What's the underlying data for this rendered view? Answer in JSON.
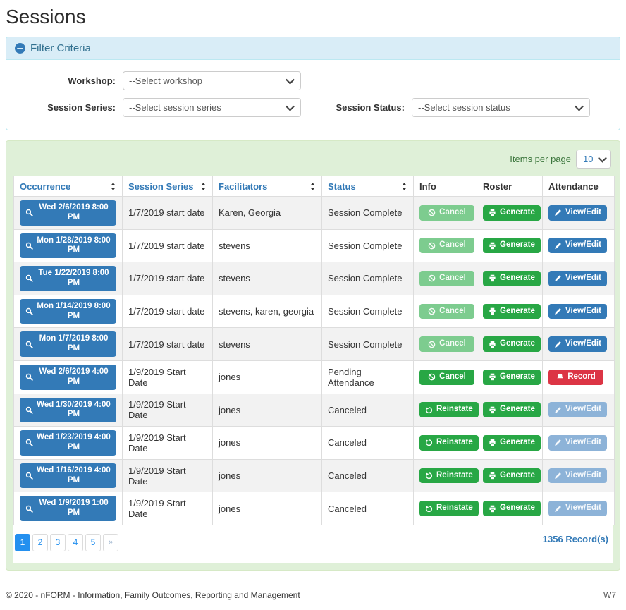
{
  "page": {
    "title": "Sessions"
  },
  "filter": {
    "title": "Filter Criteria",
    "fields": [
      {
        "label": "Workshop:",
        "value": "--Select workshop"
      },
      {
        "label": "Session Series:",
        "value": "--Select session series"
      },
      {
        "label": "Session Status:",
        "value": "--Select session status"
      }
    ]
  },
  "table": {
    "items_per_page_label": "Items per page",
    "items_per_page_value": "10",
    "columns": [
      {
        "label": "Occurrence",
        "sortable": true
      },
      {
        "label": "Session Series",
        "sortable": true
      },
      {
        "label": "Facilitators",
        "sortable": true
      },
      {
        "label": "Status",
        "sortable": true
      },
      {
        "label": "Info",
        "sortable": false
      },
      {
        "label": "Roster",
        "sortable": false
      },
      {
        "label": "Attendance",
        "sortable": false
      }
    ],
    "rows": [
      {
        "occurrence": "Wed 2/6/2019 8:00 PM",
        "series": "1/7/2019 start date",
        "facilitators": "Karen, Georgia",
        "status": "Session Complete",
        "info": {
          "label": "Cancel",
          "icon": "ban",
          "variant": "success",
          "disabled": true
        },
        "roster": {
          "label": "Generate",
          "icon": "printer",
          "variant": "success",
          "disabled": false
        },
        "attendance": {
          "label": "View/Edit",
          "icon": "pencil",
          "variant": "primary",
          "disabled": false
        }
      },
      {
        "occurrence": "Mon 1/28/2019 8:00 PM",
        "series": "1/7/2019 start date",
        "facilitators": "stevens",
        "status": "Session Complete",
        "info": {
          "label": "Cancel",
          "icon": "ban",
          "variant": "success",
          "disabled": true
        },
        "roster": {
          "label": "Generate",
          "icon": "printer",
          "variant": "success",
          "disabled": false
        },
        "attendance": {
          "label": "View/Edit",
          "icon": "pencil",
          "variant": "primary",
          "disabled": false
        }
      },
      {
        "occurrence": "Tue 1/22/2019 8:00 PM",
        "series": "1/7/2019 start date",
        "facilitators": "stevens",
        "status": "Session Complete",
        "info": {
          "label": "Cancel",
          "icon": "ban",
          "variant": "success",
          "disabled": true
        },
        "roster": {
          "label": "Generate",
          "icon": "printer",
          "variant": "success",
          "disabled": false
        },
        "attendance": {
          "label": "View/Edit",
          "icon": "pencil",
          "variant": "primary",
          "disabled": false
        }
      },
      {
        "occurrence": "Mon 1/14/2019 8:00 PM",
        "series": "1/7/2019 start date",
        "facilitators": "stevens, karen, georgia",
        "status": "Session Complete",
        "info": {
          "label": "Cancel",
          "icon": "ban",
          "variant": "success",
          "disabled": true
        },
        "roster": {
          "label": "Generate",
          "icon": "printer",
          "variant": "success",
          "disabled": false
        },
        "attendance": {
          "label": "View/Edit",
          "icon": "pencil",
          "variant": "primary",
          "disabled": false
        }
      },
      {
        "occurrence": "Mon 1/7/2019 8:00 PM",
        "series": "1/7/2019 start date",
        "facilitators": "stevens",
        "status": "Session Complete",
        "info": {
          "label": "Cancel",
          "icon": "ban",
          "variant": "success",
          "disabled": true
        },
        "roster": {
          "label": "Generate",
          "icon": "printer",
          "variant": "success",
          "disabled": false
        },
        "attendance": {
          "label": "View/Edit",
          "icon": "pencil",
          "variant": "primary",
          "disabled": false
        }
      },
      {
        "occurrence": "Wed 2/6/2019 4:00 PM",
        "series": "1/9/2019 Start Date",
        "facilitators": "jones",
        "status": "Pending Attendance",
        "info": {
          "label": "Cancel",
          "icon": "ban",
          "variant": "success",
          "disabled": false
        },
        "roster": {
          "label": "Generate",
          "icon": "printer",
          "variant": "success",
          "disabled": false
        },
        "attendance": {
          "label": "Record",
          "icon": "bell",
          "variant": "danger",
          "disabled": false
        }
      },
      {
        "occurrence": "Wed 1/30/2019 4:00 PM",
        "series": "1/9/2019 Start Date",
        "facilitators": "jones",
        "status": "Canceled",
        "info": {
          "label": "Reinstate",
          "icon": "undo",
          "variant": "success",
          "disabled": false
        },
        "roster": {
          "label": "Generate",
          "icon": "printer",
          "variant": "success",
          "disabled": false
        },
        "attendance": {
          "label": "View/Edit",
          "icon": "pencil",
          "variant": "primary",
          "disabled": true
        }
      },
      {
        "occurrence": "Wed 1/23/2019 4:00 PM",
        "series": "1/9/2019 Start Date",
        "facilitators": "jones",
        "status": "Canceled",
        "info": {
          "label": "Reinstate",
          "icon": "undo",
          "variant": "success",
          "disabled": false
        },
        "roster": {
          "label": "Generate",
          "icon": "printer",
          "variant": "success",
          "disabled": false
        },
        "attendance": {
          "label": "View/Edit",
          "icon": "pencil",
          "variant": "primary",
          "disabled": true
        }
      },
      {
        "occurrence": "Wed 1/16/2019 4:00 PM",
        "series": "1/9/2019 Start Date",
        "facilitators": "jones",
        "status": "Canceled",
        "info": {
          "label": "Reinstate",
          "icon": "undo",
          "variant": "success",
          "disabled": false
        },
        "roster": {
          "label": "Generate",
          "icon": "printer",
          "variant": "success",
          "disabled": false
        },
        "attendance": {
          "label": "View/Edit",
          "icon": "pencil",
          "variant": "primary",
          "disabled": true
        }
      },
      {
        "occurrence": "Wed 1/9/2019 1:00 PM",
        "series": "1/9/2019 Start Date",
        "facilitators": "jones",
        "status": "Canceled",
        "info": {
          "label": "Reinstate",
          "icon": "undo",
          "variant": "success",
          "disabled": false
        },
        "roster": {
          "label": "Generate",
          "icon": "printer",
          "variant": "success",
          "disabled": false
        },
        "attendance": {
          "label": "View/Edit",
          "icon": "pencil",
          "variant": "primary",
          "disabled": true
        }
      }
    ],
    "pagination": {
      "pages": [
        "1",
        "2",
        "3",
        "4",
        "5"
      ],
      "active": "1",
      "next_label": "»"
    },
    "records_label": "1356 Record(s)"
  },
  "footer": {
    "copyright": "© 2020 - nFORM - Information, Family Outcomes, Reporting and Management",
    "version": "W7"
  },
  "colors": {
    "accent_blue": "#337ab7",
    "success_green": "#28a745",
    "danger_red": "#dc3545",
    "filter_header_bg": "#d9edf7",
    "filter_border": "#bce8f1",
    "panel_bg": "#dff0d8",
    "panel_border": "#d6e9c6",
    "pagination_active": "#2490ef"
  }
}
